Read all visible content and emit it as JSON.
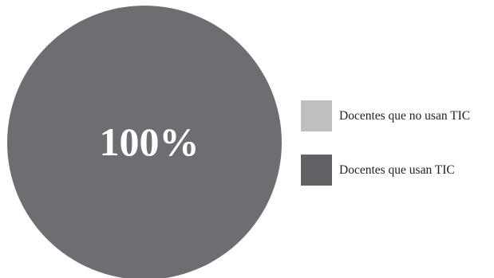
{
  "chart_data": {
    "type": "pie",
    "categories": [
      "Docentes que no usan TIC",
      "Docentes que usan TIC"
    ],
    "values": [
      0,
      100
    ],
    "data_labels": [
      "",
      "100%"
    ],
    "colors": {
      "Docentes que no usan TIC": "#bfbfbf",
      "Docentes que usan TIC": "#6d6e71"
    },
    "legend": {
      "placement": "right",
      "items": [
        {
          "label": "Docentes que no usan TIC",
          "color": "#bfbfbf"
        },
        {
          "label": "Docentes que usan TIC",
          "color": "#616265"
        }
      ]
    },
    "title": "",
    "label_color": "#ffffff"
  }
}
